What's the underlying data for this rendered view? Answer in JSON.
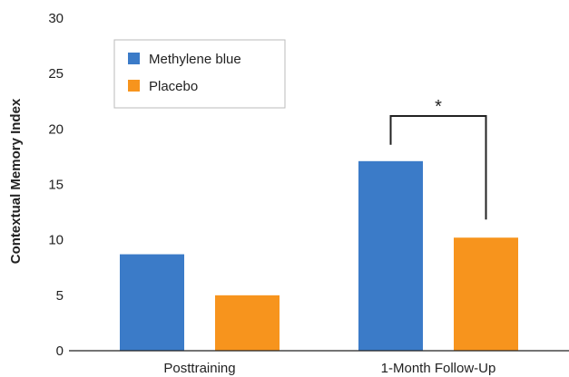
{
  "chart_data": {
    "type": "bar",
    "title": "",
    "xlabel": "",
    "ylabel": "Contextual Memory Index",
    "ylim": [
      0,
      30
    ],
    "yticks": [
      0,
      5,
      10,
      15,
      20,
      25,
      30
    ],
    "categories": [
      "Posttraining",
      "1-Month Follow-Up"
    ],
    "series": [
      {
        "name": "Methylene blue",
        "values": [
          8.7,
          17.1
        ],
        "color": "#3b7bc8"
      },
      {
        "name": "Placebo",
        "values": [
          5.0,
          10.2
        ],
        "color": "#f7941d"
      }
    ],
    "legend": {
      "placement": "top-left"
    },
    "grid": false,
    "annotations": [
      {
        "text": "*",
        "type": "significance-bracket",
        "category": "1-Month Follow-Up"
      }
    ],
    "colors": {
      "axis": "#222222",
      "background": "#ffffff",
      "bracket": "#222222"
    }
  }
}
